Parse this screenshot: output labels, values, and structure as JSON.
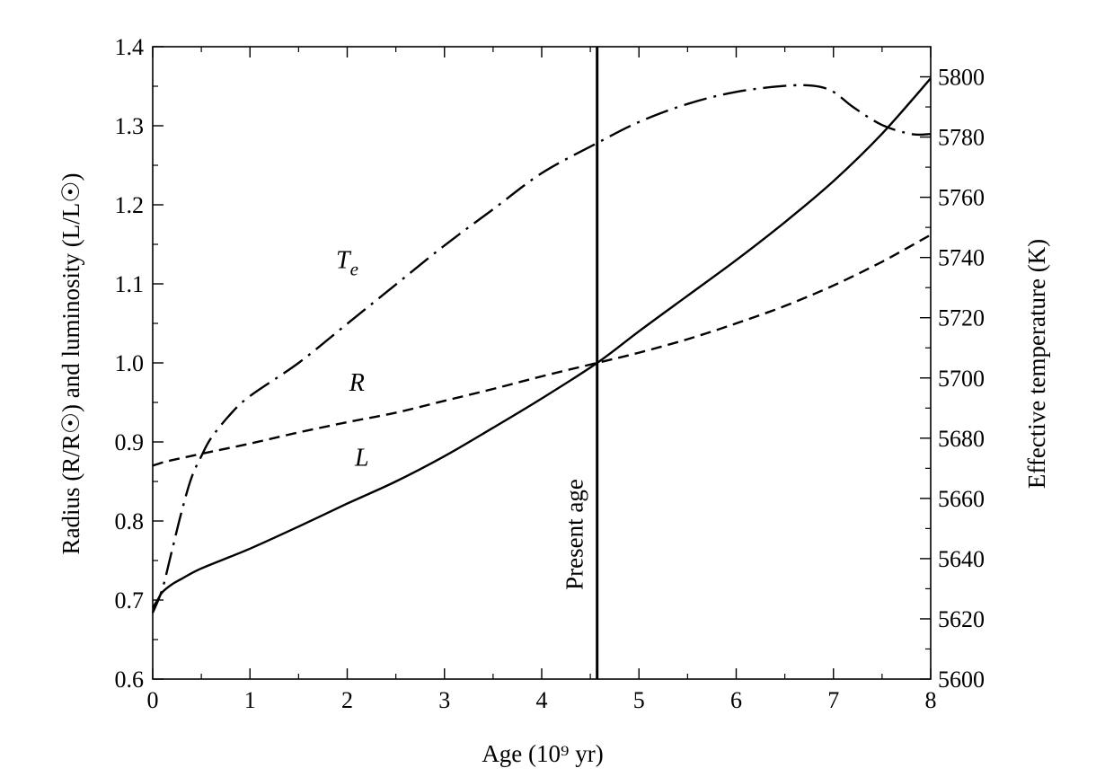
{
  "chart_data": {
    "type": "line",
    "xlabel": "Age (10⁹ yr)",
    "ylabel": "Radius (R/R☉) and luminosity (L/L☉)",
    "y2label": "Effective temperature (K)",
    "xlim": [
      0,
      8
    ],
    "ylim": [
      0.6,
      1.4
    ],
    "y2lim": [
      5600,
      5810
    ],
    "x_ticks": [
      "0",
      "1",
      "2",
      "3",
      "4",
      "5",
      "6",
      "7",
      "8"
    ],
    "y_ticks": [
      "0.6",
      "0.7",
      "0.8",
      "0.9",
      "1.0",
      "1.1",
      "1.2",
      "1.3",
      "1.4"
    ],
    "y2_ticks": [
      "5600",
      "5620",
      "5640",
      "5660",
      "5680",
      "5700",
      "5720",
      "5740",
      "5760",
      "5780",
      "5800"
    ],
    "grid": false,
    "annotations": [
      {
        "text": "Present age",
        "x": 4.57
      }
    ],
    "series": [
      {
        "name": "L",
        "axis": "left",
        "style": "solid",
        "x": [
          0.0,
          0.05,
          0.1,
          0.2,
          0.3,
          0.5,
          1.0,
          1.5,
          2.0,
          2.5,
          3.0,
          3.5,
          4.0,
          4.57,
          5.0,
          5.5,
          6.0,
          6.5,
          7.0,
          7.5,
          8.0
        ],
        "y": [
          0.69,
          0.7,
          0.71,
          0.72,
          0.727,
          0.74,
          0.765,
          0.793,
          0.822,
          0.85,
          0.882,
          0.918,
          0.955,
          1.0,
          1.04,
          1.085,
          1.13,
          1.178,
          1.23,
          1.29,
          1.36
        ]
      },
      {
        "name": "R",
        "axis": "left",
        "style": "dashed",
        "x": [
          0.0,
          0.05,
          0.1,
          0.2,
          0.5,
          1.0,
          1.5,
          2.0,
          2.5,
          3.0,
          3.5,
          4.0,
          4.57,
          5.0,
          5.5,
          6.0,
          6.5,
          7.0,
          7.5,
          8.0
        ],
        "y": [
          0.87,
          0.872,
          0.874,
          0.877,
          0.885,
          0.898,
          0.912,
          0.925,
          0.937,
          0.952,
          0.967,
          0.983,
          1.0,
          1.013,
          1.03,
          1.05,
          1.072,
          1.098,
          1.128,
          1.162
        ]
      },
      {
        "name": "Te",
        "axis": "right",
        "style": "dashdot",
        "x": [
          0.0,
          0.1,
          0.2,
          0.3,
          0.4,
          0.5,
          0.6,
          0.8,
          1.0,
          1.5,
          2.0,
          2.5,
          3.0,
          3.5,
          4.0,
          4.57,
          5.0,
          5.5,
          6.0,
          6.5,
          6.8,
          7.0,
          7.2,
          7.5,
          7.8,
          8.0
        ],
        "y": [
          5622,
          5630,
          5643,
          5656,
          5667,
          5674,
          5680,
          5688,
          5694,
          5705,
          5718,
          5731,
          5744,
          5756,
          5768,
          5778,
          5785,
          5791,
          5795,
          5797,
          5797,
          5795,
          5790,
          5784,
          5781,
          5781
        ]
      }
    ],
    "series_labels": [
      {
        "text": "T",
        "sub": "e",
        "x": 2.0,
        "y": 1.12
      },
      {
        "text": "R",
        "x": 2.1,
        "y": 0.965
      },
      {
        "text": "L",
        "x": 2.15,
        "y": 0.87
      }
    ]
  }
}
